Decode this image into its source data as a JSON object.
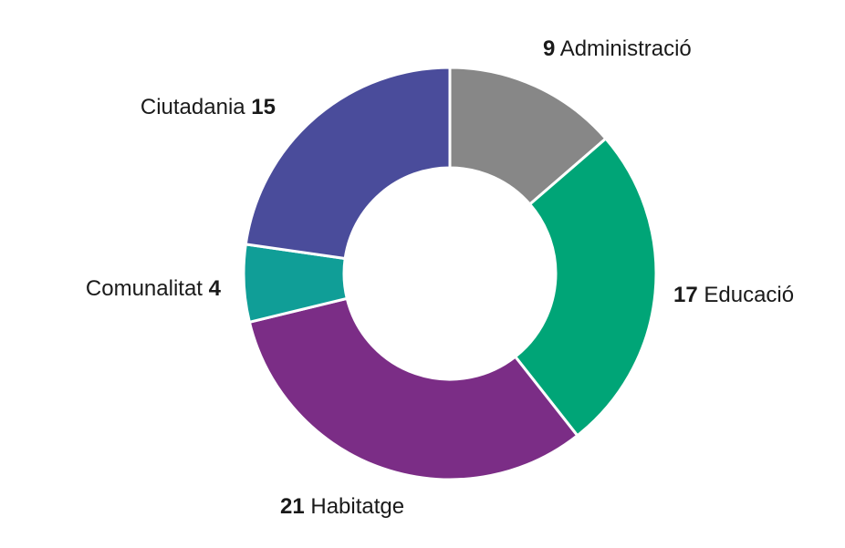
{
  "chart_data": {
    "type": "pie",
    "variant": "donut",
    "start_angle_deg": 0,
    "direction": "clockwise",
    "slice_stroke": "#ffffff",
    "slices": [
      {
        "label": "Administració",
        "value": 9,
        "color": "#878787",
        "label_order": "value-first"
      },
      {
        "label": "Educació",
        "value": 17,
        "color": "#00a577",
        "label_order": "value-first"
      },
      {
        "label": "Habitatge",
        "value": 21,
        "color": "#7b2d86",
        "label_order": "value-first"
      },
      {
        "label": "Comunalitat",
        "value": 4,
        "color": "#109e97",
        "label_order": "label-first"
      },
      {
        "label": "Ciutadania",
        "value": 15,
        "color": "#4a4c9b",
        "label_order": "label-first"
      }
    ]
  }
}
